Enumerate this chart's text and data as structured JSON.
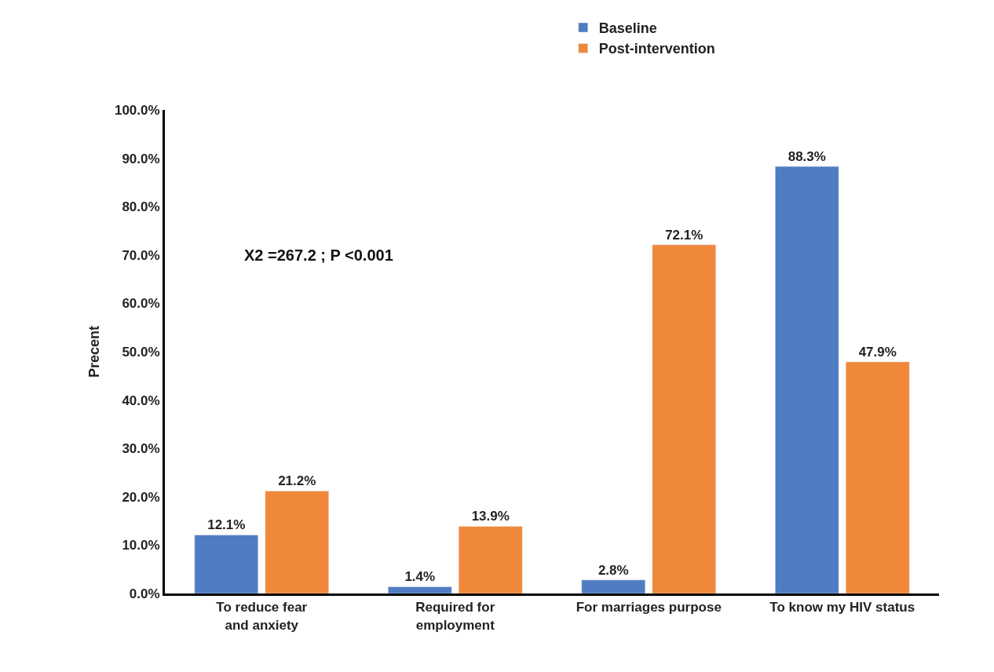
{
  "chart_data": {
    "type": "bar",
    "ylabel": "Precent",
    "categories": [
      "To reduce fear and anxiety",
      "Required for employment",
      "For marriages purpose",
      "To know my HIV status"
    ],
    "series": [
      {
        "name": "Baseline",
        "color": "#4f7cc2",
        "values": [
          12.1,
          1.4,
          2.8,
          88.3
        ],
        "value_labels": [
          "12.1%",
          "1.4%",
          "2.8%",
          "88.3%"
        ]
      },
      {
        "name": "Post-intervention",
        "color": "#f0883a",
        "values": [
          21.2,
          13.9,
          72.1,
          47.9
        ],
        "value_labels": [
          "21.2%",
          "13.9%",
          "72.1%",
          "47.9%"
        ]
      }
    ],
    "ylim": [
      0,
      100
    ],
    "yticks": [
      {
        "value": 0,
        "label": "0.0%"
      },
      {
        "value": 10,
        "label": "10.0%"
      },
      {
        "value": 20,
        "label": "20.0%"
      },
      {
        "value": 30,
        "label": "30.0%"
      },
      {
        "value": 40,
        "label": "40.0%"
      },
      {
        "value": 50,
        "label": "50.0%"
      },
      {
        "value": 60,
        "label": "60.0%"
      },
      {
        "value": 70,
        "label": "70.0%"
      },
      {
        "value": 80,
        "label": "80.0%"
      },
      {
        "value": 90,
        "label": "90.0%"
      },
      {
        "value": 100,
        "label": "100.0%"
      }
    ],
    "legend": "top",
    "annotations": [
      "X2 =267.2 ; P <0.001"
    ]
  }
}
